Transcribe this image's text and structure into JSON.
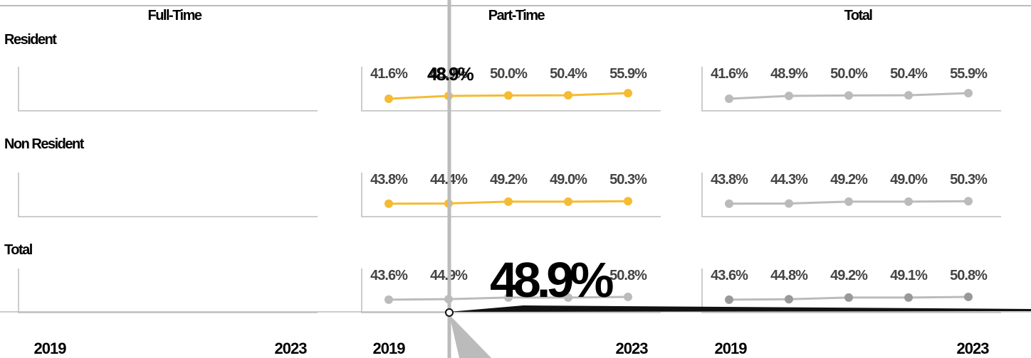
{
  "columns": [
    "Full-Time",
    "Part-Time",
    "Total"
  ],
  "rows": [
    "Resident",
    "Non Resident",
    "Total"
  ],
  "colors": {
    "part_time": "#f5bb33",
    "total": "#bbbbbb",
    "total_row_part": "#bbbbbb",
    "cursor": "#bbbbbb",
    "text": "#111111",
    "value_text": "#444444"
  },
  "tooltip": {
    "resident_label": "48.9%",
    "total_label": "48.9%"
  },
  "chart_data": {
    "type": "line",
    "x": [
      2019,
      2020,
      2021,
      2022,
      2023
    ],
    "x_tick_labels": [
      "2019",
      "2023"
    ],
    "panels": [
      {
        "row": "Resident",
        "column": "Full-Time",
        "values": null,
        "labels": null
      },
      {
        "row": "Resident",
        "column": "Part-Time",
        "values": [
          41.6,
          48.9,
          50.0,
          50.4,
          55.9
        ],
        "labels": [
          "41.6%",
          "48.9%",
          "50.0%",
          "50.4%",
          "55.9%"
        ]
      },
      {
        "row": "Resident",
        "column": "Total",
        "values": [
          41.6,
          48.9,
          50.0,
          50.4,
          55.9
        ],
        "labels": [
          "41.6%",
          "48.9%",
          "50.0%",
          "50.4%",
          "55.9%"
        ]
      },
      {
        "row": "Non Resident",
        "column": "Full-Time",
        "values": null,
        "labels": null
      },
      {
        "row": "Non Resident",
        "column": "Part-Time",
        "values": [
          43.8,
          44.4,
          49.2,
          49.0,
          50.3
        ],
        "labels": [
          "43.8%",
          "44.4%",
          "49.2%",
          "49.0%",
          "50.3%"
        ]
      },
      {
        "row": "Non Resident",
        "column": "Total",
        "values": [
          43.8,
          44.3,
          49.2,
          49.0,
          50.3
        ],
        "labels": [
          "43.8%",
          "44.3%",
          "49.2%",
          "49.0%",
          "50.3%"
        ]
      },
      {
        "row": "Total",
        "column": "Full-Time",
        "values": null,
        "labels": null
      },
      {
        "row": "Total",
        "column": "Part-Time",
        "values": [
          43.6,
          44.9,
          49.2,
          49.1,
          50.8
        ],
        "labels": [
          "43.6%",
          "44.9%",
          "",
          "",
          "50.8%"
        ]
      },
      {
        "row": "Total",
        "column": "Total",
        "values": [
          43.6,
          44.8,
          49.2,
          49.1,
          50.8
        ],
        "labels": [
          "43.6%",
          "44.8%",
          "49.2%",
          "49.1%",
          "50.8%"
        ]
      }
    ],
    "ylim": [
      0,
      100
    ],
    "grid": false
  }
}
